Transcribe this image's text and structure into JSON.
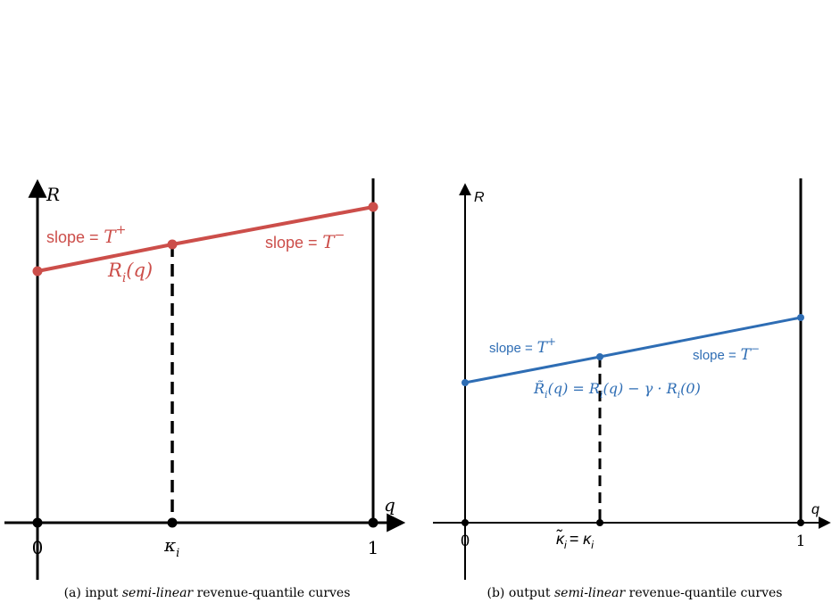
{
  "panels": [
    {
      "axis_y": "R",
      "axis_x": "q",
      "tick_left": "0",
      "tick_right": "1",
      "tick_mid": {
        "symbol": "κ",
        "sub": "i"
      },
      "slope_left": {
        "prefix": "slope =",
        "symbol": "T",
        "sup": "+"
      },
      "slope_right": {
        "prefix": "slope =",
        "symbol": "T",
        "sup": "−"
      },
      "curve_label": {
        "symbol": "R",
        "sub": "i",
        "suffix": "(q)"
      },
      "caption": {
        "prefix": "(a)  input",
        "emphasis": "semi-linear",
        "suffix": "revenue-quantile curves"
      }
    },
    {
      "axis_y": "R",
      "axis_x": "q",
      "tick_left": "0",
      "tick_right": "1",
      "tick_mid": {
        "symbol": "κ̃",
        "sub": "i",
        "eq": "= κ",
        "sub2": "i"
      },
      "slope_left": {
        "prefix": "slope =",
        "symbol": "T",
        "sup": "+"
      },
      "slope_right": {
        "prefix": "slope =",
        "symbol": "T",
        "sup": "−"
      },
      "curve_label": {
        "symbol": "R̃",
        "sub": "i",
        "mid": "(q) = R",
        "sub2": "i",
        "mid2": "(q) − γ · R",
        "sub3": "i",
        "suffix": "(0)"
      },
      "caption": {
        "prefix": "(b)  output",
        "emphasis": "semi-linear",
        "suffix": "revenue-quantile curves"
      }
    }
  ]
}
